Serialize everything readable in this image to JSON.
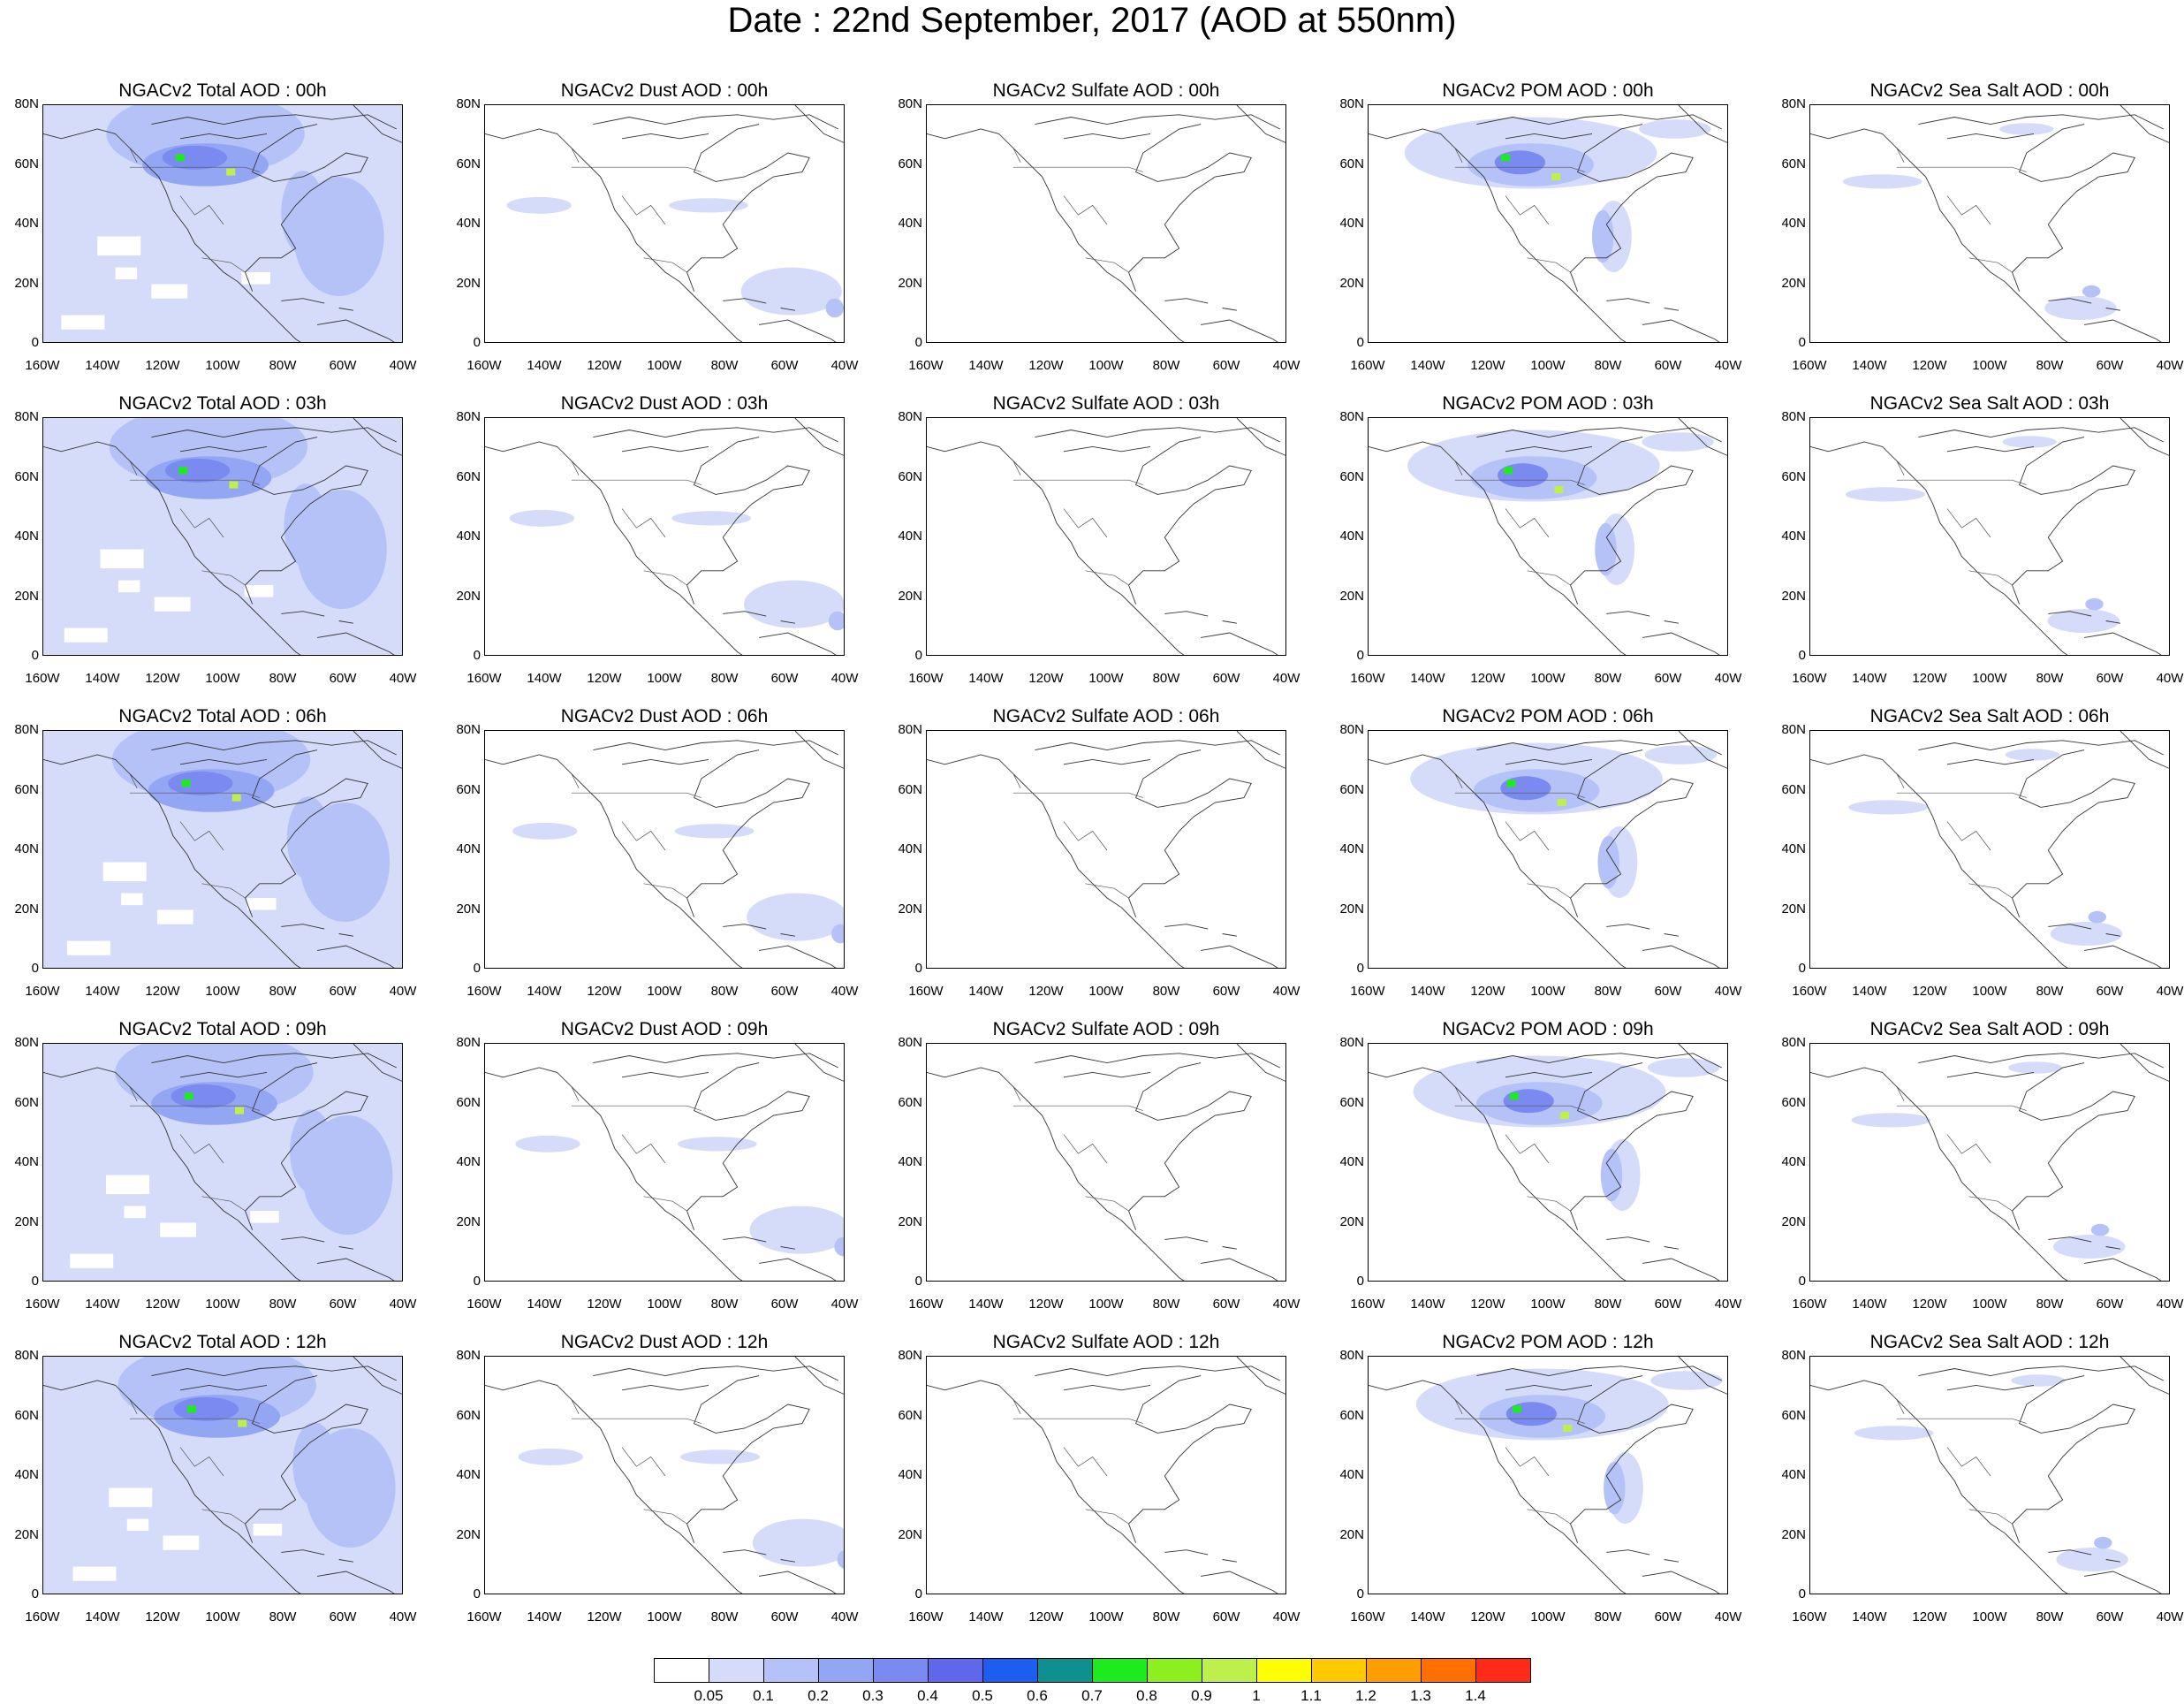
{
  "title": "Date : 22nd September, 2017 (AOD at 550nm)",
  "lat_ticks": [
    "80N",
    "60N",
    "40N",
    "20N",
    "0"
  ],
  "lon_ticks": [
    "160W",
    "140W",
    "120W",
    "100W",
    "80W",
    "60W",
    "40W"
  ],
  "rows": [
    {
      "panels": [
        "NGACv2 Total AOD : 00h",
        "NGACv2 Dust AOD : 00h",
        "NGACv2 Sulfate AOD : 00h",
        "NGACv2 POM AOD : 00h",
        "NGACv2 Sea Salt AOD : 00h"
      ]
    },
    {
      "panels": [
        "NGACv2 Total AOD : 03h",
        "NGACv2 Dust AOD : 03h",
        "NGACv2 Sulfate AOD : 03h",
        "NGACv2 POM AOD : 03h",
        "NGACv2 Sea Salt AOD : 03h"
      ]
    },
    {
      "panels": [
        "NGACv2 Total AOD : 06h",
        "NGACv2 Dust AOD : 06h",
        "NGACv2 Sulfate AOD : 06h",
        "NGACv2 POM AOD : 06h",
        "NGACv2 Sea Salt AOD : 06h"
      ]
    },
    {
      "panels": [
        "NGACv2 Total AOD : 09h",
        "NGACv2 Dust AOD : 09h",
        "NGACv2 Sulfate AOD : 09h",
        "NGACv2 POM AOD : 09h",
        "NGACv2 Sea Salt  AOD : 09h"
      ]
    },
    {
      "panels": [
        "NGACv2 Total AOD  : 12h",
        "NGACv2 Dust AOD : 12h",
        "NGACv2 Sulfate AOD : 12h",
        "NGACv2 POM  AOD : 12h",
        "NGACv2 Sea Salt  AOD : 12h"
      ]
    }
  ],
  "colorbar": {
    "colors": [
      "#ffffff",
      "#d4dcfa",
      "#b4c2f7",
      "#93a6f3",
      "#7a8af0",
      "#5f68ea",
      "#1d5ef0",
      "#0f9090",
      "#1eeb1e",
      "#8cf01e",
      "#bef04b",
      "#ffff00",
      "#ffcb00",
      "#ff9e00",
      "#ff7000",
      "#ff2a1a"
    ],
    "labels": [
      "0.05",
      "0.1",
      "0.2",
      "0.3",
      "0.4",
      "0.5",
      "0.6",
      "0.7",
      "0.8",
      "0.9",
      "1",
      "1.1",
      "1.2",
      "1.3",
      "1.4"
    ]
  },
  "map_fields": {
    "Total": {
      "bg": "#d4dcfa",
      "blobs": [
        [
          "#b4c2f7",
          0.45,
          0.12,
          0.55,
          0.35
        ],
        [
          "#93a6f3",
          0.45,
          0.25,
          0.35,
          0.18
        ],
        [
          "#7a8af0",
          0.42,
          0.22,
          0.18,
          0.1
        ],
        [
          "#b4c2f7",
          0.82,
          0.55,
          0.25,
          0.5
        ],
        [
          "#b4c2f7",
          0.72,
          0.45,
          0.12,
          0.35
        ]
      ],
      "white": [
        [
          0.15,
          0.55,
          0.12,
          0.08
        ],
        [
          0.3,
          0.75,
          0.1,
          0.06
        ],
        [
          0.05,
          0.88,
          0.12,
          0.06
        ],
        [
          0.55,
          0.7,
          0.08,
          0.05
        ],
        [
          0.2,
          0.68,
          0.06,
          0.05
        ]
      ],
      "hot": [
        [
          0.38,
          0.22,
          "#1eeb1e"
        ],
        [
          0.52,
          0.28,
          "#bef04b"
        ]
      ]
    },
    "Dust": {
      "bg": "#ffffff",
      "blobs": [
        [
          "#d4dcfa",
          0.85,
          0.78,
          0.28,
          0.2
        ],
        [
          "#b4c2f7",
          0.97,
          0.85,
          0.05,
          0.08
        ],
        [
          "#d4dcfa",
          0.15,
          0.42,
          0.18,
          0.07
        ],
        [
          "#d4dcfa",
          0.62,
          0.42,
          0.22,
          0.06
        ]
      ],
      "white": [],
      "hot": []
    },
    "Sulfate": {
      "bg": "#ffffff",
      "blobs": [],
      "white": [],
      "hot": []
    },
    "POM": {
      "bg": "#ffffff",
      "blobs": [
        [
          "#d4dcfa",
          0.45,
          0.2,
          0.7,
          0.3
        ],
        [
          "#b4c2f7",
          0.45,
          0.25,
          0.35,
          0.18
        ],
        [
          "#7a8af0",
          0.42,
          0.24,
          0.14,
          0.1
        ],
        [
          "#d4dcfa",
          0.68,
          0.55,
          0.1,
          0.3
        ],
        [
          "#b4c2f7",
          0.65,
          0.55,
          0.06,
          0.22
        ],
        [
          "#d4dcfa",
          0.85,
          0.1,
          0.2,
          0.08
        ]
      ],
      "white": [],
      "hot": [
        [
          0.38,
          0.22,
          "#1eeb1e"
        ],
        [
          0.52,
          0.3,
          "#bef04b"
        ]
      ]
    },
    "SeaSalt": {
      "bg": "#ffffff",
      "blobs": [
        [
          "#d4dcfa",
          0.2,
          0.32,
          0.22,
          0.06
        ],
        [
          "#d4dcfa",
          0.75,
          0.85,
          0.2,
          0.1
        ],
        [
          "#b4c2f7",
          0.78,
          0.78,
          0.05,
          0.05
        ],
        [
          "#d4dcfa",
          0.6,
          0.1,
          0.15,
          0.05
        ]
      ],
      "white": [],
      "hot": []
    }
  }
}
